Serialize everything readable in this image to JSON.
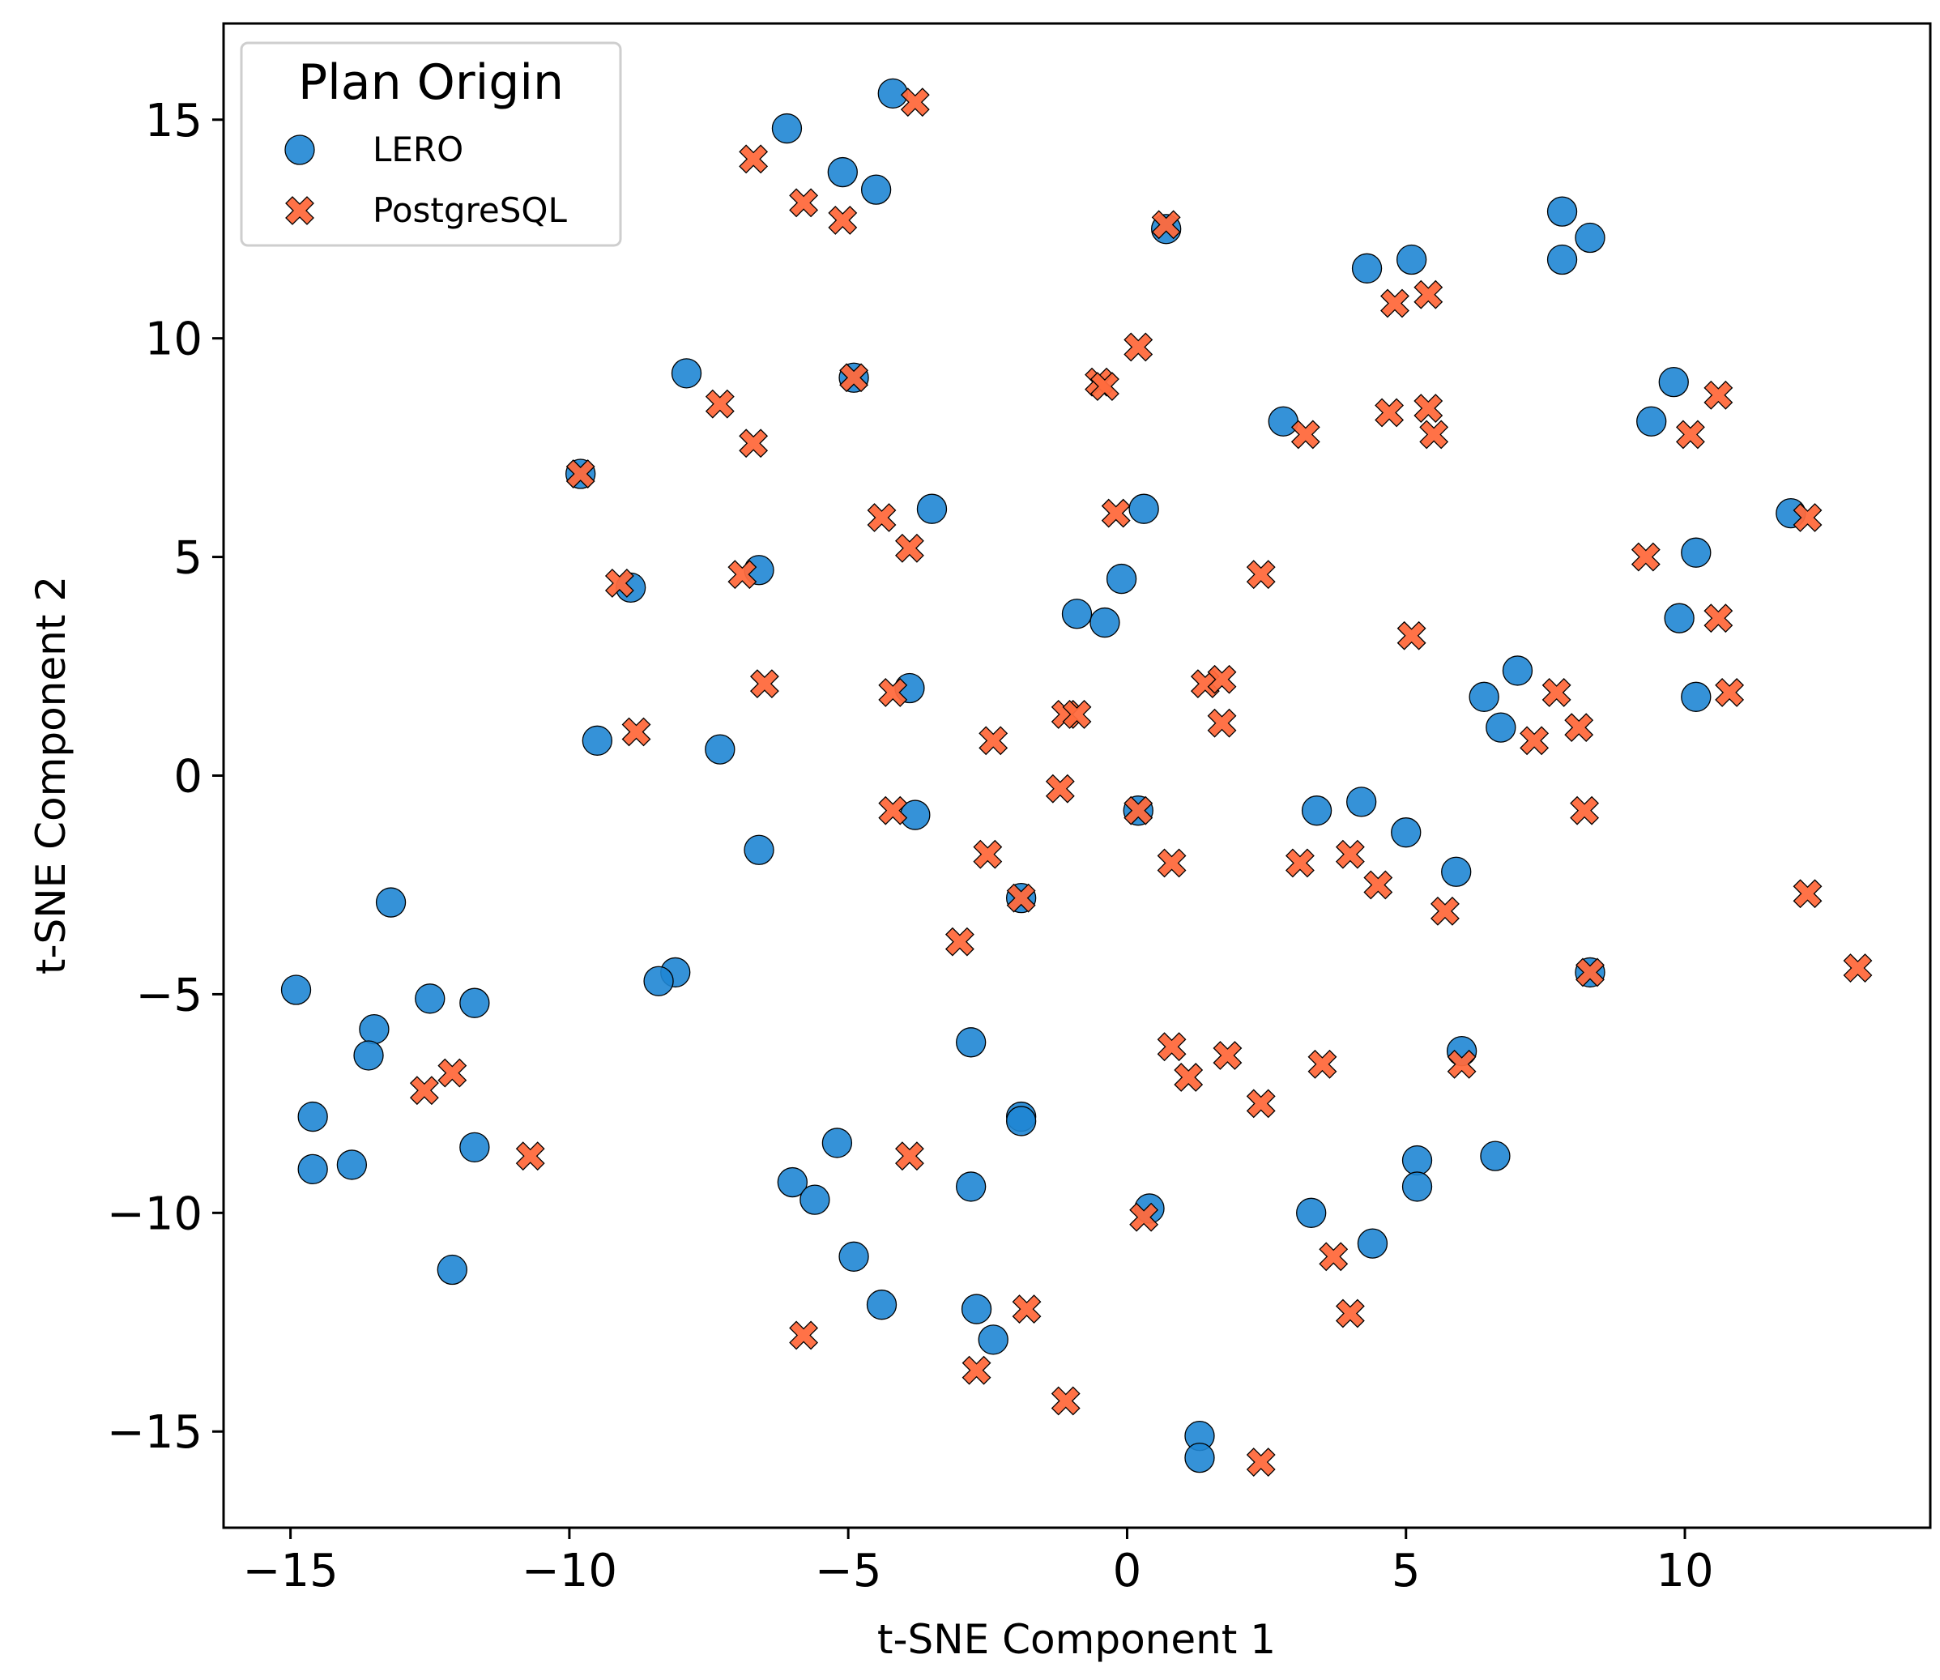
{
  "chart_data": {
    "type": "scatter",
    "title": "",
    "xlabel": "t-SNE Component 1",
    "ylabel": "t-SNE Component 2",
    "xlim": [
      -16.2,
      14.4
    ],
    "ylim": [
      -17.2,
      17.2
    ],
    "xticks": [
      -15,
      -10,
      -5,
      0,
      5,
      10
    ],
    "yticks": [
      -15,
      -10,
      -5,
      0,
      5,
      10,
      15
    ],
    "grid": false,
    "legend": {
      "title": "Plan Origin",
      "placement": "top-left"
    },
    "series": [
      {
        "name": "LERO",
        "marker": "circle",
        "color": "#1f86d4",
        "points": [
          [
            -4.2,
            15.6
          ],
          [
            -6.1,
            14.8
          ],
          [
            -5.1,
            13.8
          ],
          [
            -4.5,
            13.4
          ],
          [
            0.7,
            12.5
          ],
          [
            -4.9,
            9.1
          ],
          [
            -7.9,
            9.2
          ],
          [
            -9.8,
            6.9
          ],
          [
            -3.5,
            6.1
          ],
          [
            -6.6,
            4.7
          ],
          [
            -8.9,
            4.3
          ],
          [
            -3.9,
            2.0
          ],
          [
            -9.5,
            0.8
          ],
          [
            -7.3,
            0.6
          ],
          [
            -3.8,
            -0.9
          ],
          [
            -6.6,
            -1.7
          ],
          [
            -13.2,
            -2.9
          ],
          [
            -8.1,
            -4.5
          ],
          [
            -8.4,
            -4.7
          ],
          [
            -14.9,
            -4.9
          ],
          [
            -12.5,
            -5.1
          ],
          [
            -11.7,
            -5.2
          ],
          [
            -13.5,
            -5.8
          ],
          [
            -13.6,
            -6.4
          ],
          [
            -14.6,
            -7.8
          ],
          [
            -11.7,
            -8.5
          ],
          [
            -14.6,
            -9.0
          ],
          [
            -13.9,
            -8.9
          ],
          [
            -12.1,
            -11.3
          ],
          [
            -2.8,
            -6.1
          ],
          [
            -5.2,
            -8.4
          ],
          [
            -6.0,
            -9.3
          ],
          [
            -5.6,
            -9.7
          ],
          [
            -2.8,
            -9.4
          ],
          [
            -1.9,
            -7.8
          ],
          [
            -1.9,
            -7.9
          ],
          [
            -4.9,
            -11.0
          ],
          [
            -4.4,
            -12.1
          ],
          [
            -2.7,
            -12.2
          ],
          [
            -2.4,
            -12.9
          ],
          [
            0.4,
            -9.9
          ],
          [
            0.2,
            -0.8
          ],
          [
            -1.9,
            -2.8
          ],
          [
            -0.9,
            3.7
          ],
          [
            -0.4,
            3.5
          ],
          [
            -0.1,
            4.5
          ],
          [
            0.3,
            6.1
          ],
          [
            2.8,
            8.1
          ],
          [
            4.3,
            11.6
          ],
          [
            5.1,
            11.8
          ],
          [
            7.8,
            12.9
          ],
          [
            8.3,
            12.3
          ],
          [
            7.8,
            11.8
          ],
          [
            9.8,
            9.0
          ],
          [
            9.4,
            8.1
          ],
          [
            11.9,
            6.0
          ],
          [
            10.2,
            5.1
          ],
          [
            9.9,
            3.6
          ],
          [
            10.2,
            1.8
          ],
          [
            7.0,
            2.4
          ],
          [
            6.4,
            1.8
          ],
          [
            6.7,
            1.1
          ],
          [
            4.2,
            -0.6
          ],
          [
            3.4,
            -0.8
          ],
          [
            5.0,
            -1.3
          ],
          [
            5.9,
            -2.2
          ],
          [
            8.3,
            -4.5
          ],
          [
            6.0,
            -6.3
          ],
          [
            6.6,
            -8.7
          ],
          [
            5.2,
            -8.8
          ],
          [
            5.2,
            -9.4
          ],
          [
            3.3,
            -10.0
          ],
          [
            4.4,
            -10.7
          ],
          [
            1.3,
            -15.1
          ],
          [
            1.3,
            -15.6
          ]
        ]
      },
      {
        "name": "PostgreSQL",
        "marker": "x",
        "color": "#ff6a3d",
        "points": [
          [
            -3.8,
            15.4
          ],
          [
            -6.7,
            14.1
          ],
          [
            -5.8,
            13.1
          ],
          [
            -5.1,
            12.7
          ],
          [
            0.7,
            12.6
          ],
          [
            -4.9,
            9.1
          ],
          [
            -7.3,
            8.5
          ],
          [
            -6.7,
            7.6
          ],
          [
            -9.8,
            6.9
          ],
          [
            -4.4,
            5.9
          ],
          [
            -3.9,
            5.2
          ],
          [
            -6.9,
            4.6
          ],
          [
            -9.1,
            4.4
          ],
          [
            -6.5,
            2.1
          ],
          [
            -4.2,
            1.9
          ],
          [
            -8.8,
            1.0
          ],
          [
            -4.2,
            -0.8
          ],
          [
            -12.6,
            -7.2
          ],
          [
            -12.1,
            -6.8
          ],
          [
            -10.7,
            -8.7
          ],
          [
            -2.4,
            0.8
          ],
          [
            -2.5,
            -1.8
          ],
          [
            -1.9,
            -2.8
          ],
          [
            -3.0,
            -3.8
          ],
          [
            -1.2,
            -0.3
          ],
          [
            -1.1,
            1.4
          ],
          [
            -0.9,
            1.4
          ],
          [
            -0.5,
            9.0
          ],
          [
            -0.4,
            8.9
          ],
          [
            0.2,
            9.8
          ],
          [
            -0.2,
            6.0
          ],
          [
            0.2,
            -0.8
          ],
          [
            0.8,
            -2.0
          ],
          [
            1.4,
            2.1
          ],
          [
            1.7,
            2.2
          ],
          [
            1.7,
            1.2
          ],
          [
            2.4,
            4.6
          ],
          [
            0.8,
            -6.2
          ],
          [
            1.1,
            -6.9
          ],
          [
            1.8,
            -6.4
          ],
          [
            2.4,
            -7.5
          ],
          [
            3.5,
            -6.6
          ],
          [
            3.1,
            -2.0
          ],
          [
            4.0,
            -1.8
          ],
          [
            4.5,
            -2.5
          ],
          [
            3.2,
            7.8
          ],
          [
            4.7,
            8.3
          ],
          [
            5.4,
            8.4
          ],
          [
            5.5,
            7.8
          ],
          [
            4.8,
            10.8
          ],
          [
            5.4,
            11.0
          ],
          [
            5.1,
            3.2
          ],
          [
            5.7,
            -3.1
          ],
          [
            6.0,
            -6.6
          ],
          [
            7.7,
            1.9
          ],
          [
            7.3,
            0.8
          ],
          [
            8.1,
            1.1
          ],
          [
            8.2,
            -0.8
          ],
          [
            8.3,
            -4.5
          ],
          [
            9.3,
            5.0
          ],
          [
            10.6,
            3.6
          ],
          [
            10.8,
            1.9
          ],
          [
            10.1,
            7.8
          ],
          [
            10.6,
            8.7
          ],
          [
            12.2,
            5.9
          ],
          [
            12.2,
            -2.7
          ],
          [
            13.1,
            -4.4
          ],
          [
            -3.9,
            -8.7
          ],
          [
            -5.8,
            -12.8
          ],
          [
            -2.7,
            -13.6
          ],
          [
            -1.8,
            -12.2
          ],
          [
            -1.1,
            -14.3
          ],
          [
            0.3,
            -10.1
          ],
          [
            3.7,
            -11.0
          ],
          [
            4.0,
            -12.3
          ],
          [
            2.4,
            -15.7
          ]
        ]
      }
    ]
  }
}
